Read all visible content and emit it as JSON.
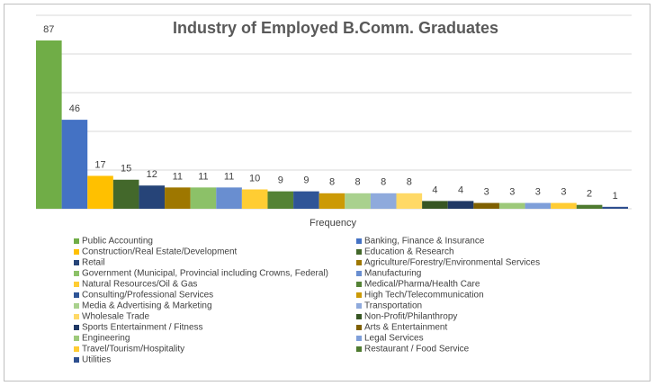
{
  "chart_data": {
    "type": "bar",
    "title": "Industry of Employed B.Comm. Graduates",
    "x_label": "Frequency",
    "categories": [
      "Public Accounting",
      "Banking, Finance & Insurance",
      "Construction/Real Estate/Development",
      "Education & Research",
      "Retail",
      "Agriculture/Forestry/Environmental Services",
      "Government (Municipal, Provincial including Crowns, Federal)",
      "Manufacturing",
      "Natural Resources/Oil & Gas",
      "Medical/Pharma/Health Care",
      "Consulting/Professional Services",
      "High Tech/Telecommunication",
      "Media & Advertising & Marketing",
      "Transportation",
      "Wholesale Trade",
      "Non-Profit/Philanthropy",
      "Sports Entertainment / Fitness",
      "Arts & Entertainment",
      "Engineering",
      "Legal Services",
      "Travel/Tourism/Hospitality",
      "Restaurant / Food Service",
      "Utilities"
    ],
    "values": [
      87,
      46,
      17,
      15,
      12,
      11,
      11,
      11,
      10,
      9,
      9,
      8,
      8,
      8,
      8,
      4,
      4,
      3,
      3,
      3,
      3,
      2,
      1
    ],
    "colors": [
      "#70ad47",
      "#4472c4",
      "#ffc000",
      "#43682b",
      "#264478",
      "#9e7700",
      "#8cc168",
      "#698ed0",
      "#ffcd33",
      "#548235",
      "#2f5597",
      "#cc9a06",
      "#a9d18e",
      "#8faadc",
      "#ffd966",
      "#375623",
      "#1f3864",
      "#7f6000",
      "#9dc97a",
      "#7f9fd9",
      "#ffcc33",
      "#4e7a2f",
      "#2e4f8f"
    ],
    "ylim": [
      0,
      100
    ],
    "yticks": [
      0,
      20,
      40,
      60,
      80,
      100
    ],
    "show_ytick_labels": false,
    "grid": true,
    "legend_position": "bottom"
  }
}
